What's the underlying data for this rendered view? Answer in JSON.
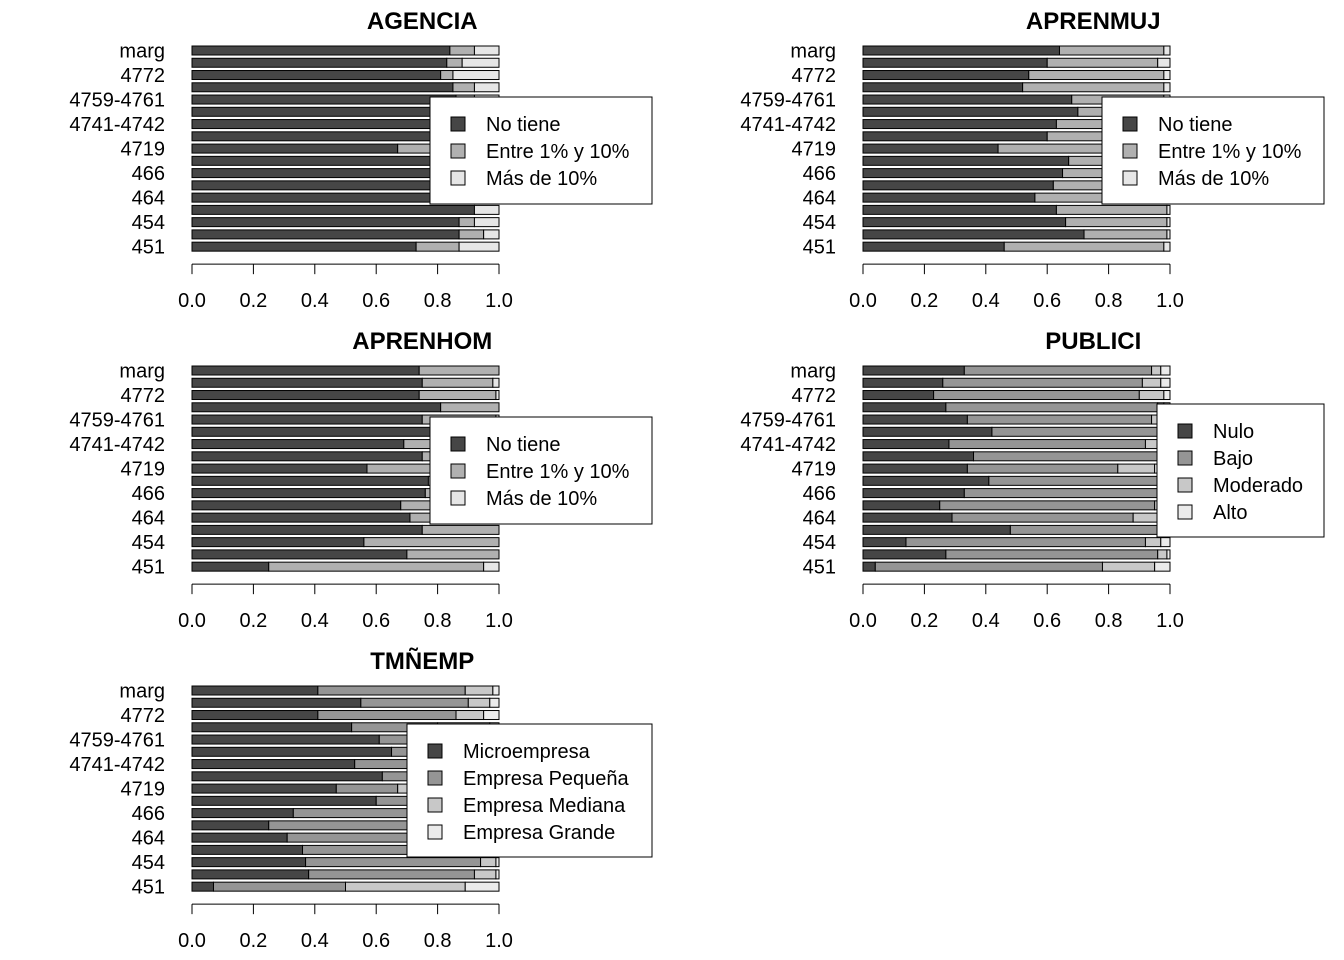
{
  "colors": {
    "background": "#ffffff",
    "bar_outline": "#000000",
    "palette_3": [
      "#464646",
      "#b0b0b0",
      "#e6e6e6"
    ],
    "palette_4": [
      "#464646",
      "#959595",
      "#c8c8c8",
      "#ebebeb"
    ]
  },
  "chart_data": [
    {
      "type": "bar",
      "orientation": "horizontal",
      "stacked": "proportions",
      "title": "AGENCIA",
      "categories": [
        "451",
        "",
        "454",
        "",
        "464",
        "",
        "466",
        "",
        "4719",
        "",
        "4741-4742",
        "",
        "4759-4761",
        "",
        "4772",
        "",
        "marg"
      ],
      "xlim": [
        0,
        1
      ],
      "xticks": [
        "0.0",
        "0.2",
        "0.4",
        "0.6",
        "0.8",
        "1.0"
      ],
      "legend_position": "right",
      "series": [
        {
          "name": "No tiene",
          "values": [
            0.73,
            0.87,
            0.87,
            0.92,
            0.83,
            0.87,
            0.85,
            0.88,
            0.67,
            0.9,
            0.85,
            0.88,
            0.86,
            0.85,
            0.81,
            0.83,
            0.84
          ]
        },
        {
          "name": "Entre 1% y 10%",
          "values": [
            0.14,
            0.08,
            0.05,
            0.0,
            0.07,
            0.04,
            0.05,
            0.04,
            0.18,
            0.02,
            0.06,
            0.05,
            0.06,
            0.07,
            0.04,
            0.05,
            0.08
          ]
        },
        {
          "name": "Más de 10%",
          "values": [
            0.13,
            0.05,
            0.08,
            0.08,
            0.1,
            0.09,
            0.1,
            0.08,
            0.15,
            0.08,
            0.09,
            0.07,
            0.08,
            0.08,
            0.15,
            0.12,
            0.08
          ]
        }
      ]
    },
    {
      "type": "bar",
      "orientation": "horizontal",
      "stacked": "proportions",
      "title": "APRENMUJ",
      "categories": [
        "451",
        "",
        "454",
        "",
        "464",
        "",
        "466",
        "",
        "4719",
        "",
        "4741-4742",
        "",
        "4759-4761",
        "",
        "4772",
        "",
        "marg"
      ],
      "xlim": [
        0,
        1
      ],
      "xticks": [
        "0.0",
        "0.2",
        "0.4",
        "0.6",
        "0.8",
        "1.0"
      ],
      "legend_position": "right",
      "series": [
        {
          "name": "No tiene",
          "values": [
            0.46,
            0.72,
            0.66,
            0.63,
            0.56,
            0.62,
            0.65,
            0.67,
            0.44,
            0.6,
            0.63,
            0.7,
            0.68,
            0.52,
            0.54,
            0.6,
            0.64
          ]
        },
        {
          "name": "Entre 1% y 10%",
          "values": [
            0.52,
            0.27,
            0.33,
            0.36,
            0.42,
            0.36,
            0.33,
            0.31,
            0.54,
            0.38,
            0.35,
            0.28,
            0.3,
            0.46,
            0.44,
            0.36,
            0.34
          ]
        },
        {
          "name": "Más de 10%",
          "values": [
            0.02,
            0.01,
            0.01,
            0.01,
            0.02,
            0.02,
            0.02,
            0.02,
            0.02,
            0.02,
            0.02,
            0.02,
            0.02,
            0.02,
            0.02,
            0.04,
            0.02
          ]
        }
      ]
    },
    {
      "type": "bar",
      "orientation": "horizontal",
      "stacked": "proportions",
      "title": "APRENHOM",
      "categories": [
        "451",
        "",
        "454",
        "",
        "464",
        "",
        "466",
        "",
        "4719",
        "",
        "4741-4742",
        "",
        "4759-4761",
        "",
        "4772",
        "",
        "marg"
      ],
      "xlim": [
        0,
        1
      ],
      "xticks": [
        "0.0",
        "0.2",
        "0.4",
        "0.6",
        "0.8",
        "1.0"
      ],
      "legend_position": "right",
      "series": [
        {
          "name": "No tiene",
          "values": [
            0.25,
            0.7,
            0.56,
            0.75,
            0.71,
            0.68,
            0.76,
            0.77,
            0.57,
            0.75,
            0.69,
            0.8,
            0.75,
            0.81,
            0.74,
            0.75,
            0.74
          ]
        },
        {
          "name": "Entre 1% y 10%",
          "values": [
            0.7,
            0.3,
            0.44,
            0.25,
            0.27,
            0.3,
            0.22,
            0.21,
            0.41,
            0.23,
            0.29,
            0.19,
            0.24,
            0.19,
            0.25,
            0.23,
            0.26
          ]
        },
        {
          "name": "Más de 10%",
          "values": [
            0.05,
            0.0,
            0.0,
            0.0,
            0.02,
            0.02,
            0.02,
            0.02,
            0.02,
            0.02,
            0.02,
            0.01,
            0.01,
            0.0,
            0.01,
            0.02,
            0.0
          ]
        }
      ]
    },
    {
      "type": "bar",
      "orientation": "horizontal",
      "stacked": "proportions",
      "title": "PUBLICI",
      "categories": [
        "451",
        "",
        "454",
        "",
        "464",
        "",
        "466",
        "",
        "4719",
        "",
        "4741-4742",
        "",
        "4759-4761",
        "",
        "4772",
        "",
        "marg"
      ],
      "xlim": [
        0,
        1
      ],
      "xticks": [
        "0.0",
        "0.2",
        "0.4",
        "0.6",
        "0.8",
        "1.0"
      ],
      "legend_position": "right",
      "series": [
        {
          "name": "Nulo",
          "values": [
            0.04,
            0.27,
            0.14,
            0.48,
            0.29,
            0.25,
            0.33,
            0.41,
            0.34,
            0.36,
            0.28,
            0.42,
            0.34,
            0.27,
            0.23,
            0.26,
            0.33
          ]
        },
        {
          "name": "Bajo",
          "values": [
            0.74,
            0.69,
            0.78,
            0.48,
            0.59,
            0.7,
            0.63,
            0.55,
            0.49,
            0.6,
            0.64,
            0.54,
            0.6,
            0.69,
            0.67,
            0.65,
            0.61
          ]
        },
        {
          "name": "Moderado",
          "values": [
            0.17,
            0.03,
            0.05,
            0.03,
            0.08,
            0.03,
            0.02,
            0.02,
            0.12,
            0.02,
            0.05,
            0.02,
            0.03,
            0.02,
            0.08,
            0.06,
            0.03
          ]
        },
        {
          "name": "Alto",
          "values": [
            0.05,
            0.01,
            0.03,
            0.01,
            0.04,
            0.02,
            0.02,
            0.02,
            0.05,
            0.02,
            0.03,
            0.02,
            0.03,
            0.02,
            0.02,
            0.03,
            0.03
          ]
        }
      ]
    },
    {
      "type": "bar",
      "orientation": "horizontal",
      "stacked": "proportions",
      "title": "TMÑEMP",
      "categories": [
        "451",
        "",
        "454",
        "",
        "464",
        "",
        "466",
        "",
        "4719",
        "",
        "4741-4742",
        "",
        "4759-4761",
        "",
        "4772",
        "",
        "marg"
      ],
      "xlim": [
        0,
        1
      ],
      "xticks": [
        "0.0",
        "0.2",
        "0.4",
        "0.6",
        "0.8",
        "1.0"
      ],
      "legend_position": "right",
      "series": [
        {
          "name": "Microempresa",
          "values": [
            0.07,
            0.38,
            0.37,
            0.36,
            0.31,
            0.25,
            0.33,
            0.6,
            0.47,
            0.62,
            0.53,
            0.65,
            0.61,
            0.52,
            0.41,
            0.55,
            0.41
          ]
        },
        {
          "name": "Empresa Pequeña",
          "values": [
            0.43,
            0.54,
            0.57,
            0.46,
            0.52,
            0.6,
            0.52,
            0.3,
            0.2,
            0.2,
            0.24,
            0.18,
            0.2,
            0.28,
            0.45,
            0.35,
            0.48
          ]
        },
        {
          "name": "Empresa Mediana",
          "values": [
            0.39,
            0.07,
            0.05,
            0.14,
            0.14,
            0.13,
            0.13,
            0.08,
            0.2,
            0.15,
            0.17,
            0.14,
            0.15,
            0.17,
            0.09,
            0.07,
            0.09
          ]
        },
        {
          "name": "Empresa Grande",
          "values": [
            0.11,
            0.01,
            0.01,
            0.04,
            0.03,
            0.02,
            0.02,
            0.02,
            0.13,
            0.03,
            0.06,
            0.03,
            0.04,
            0.03,
            0.05,
            0.03,
            0.02
          ]
        }
      ]
    }
  ]
}
